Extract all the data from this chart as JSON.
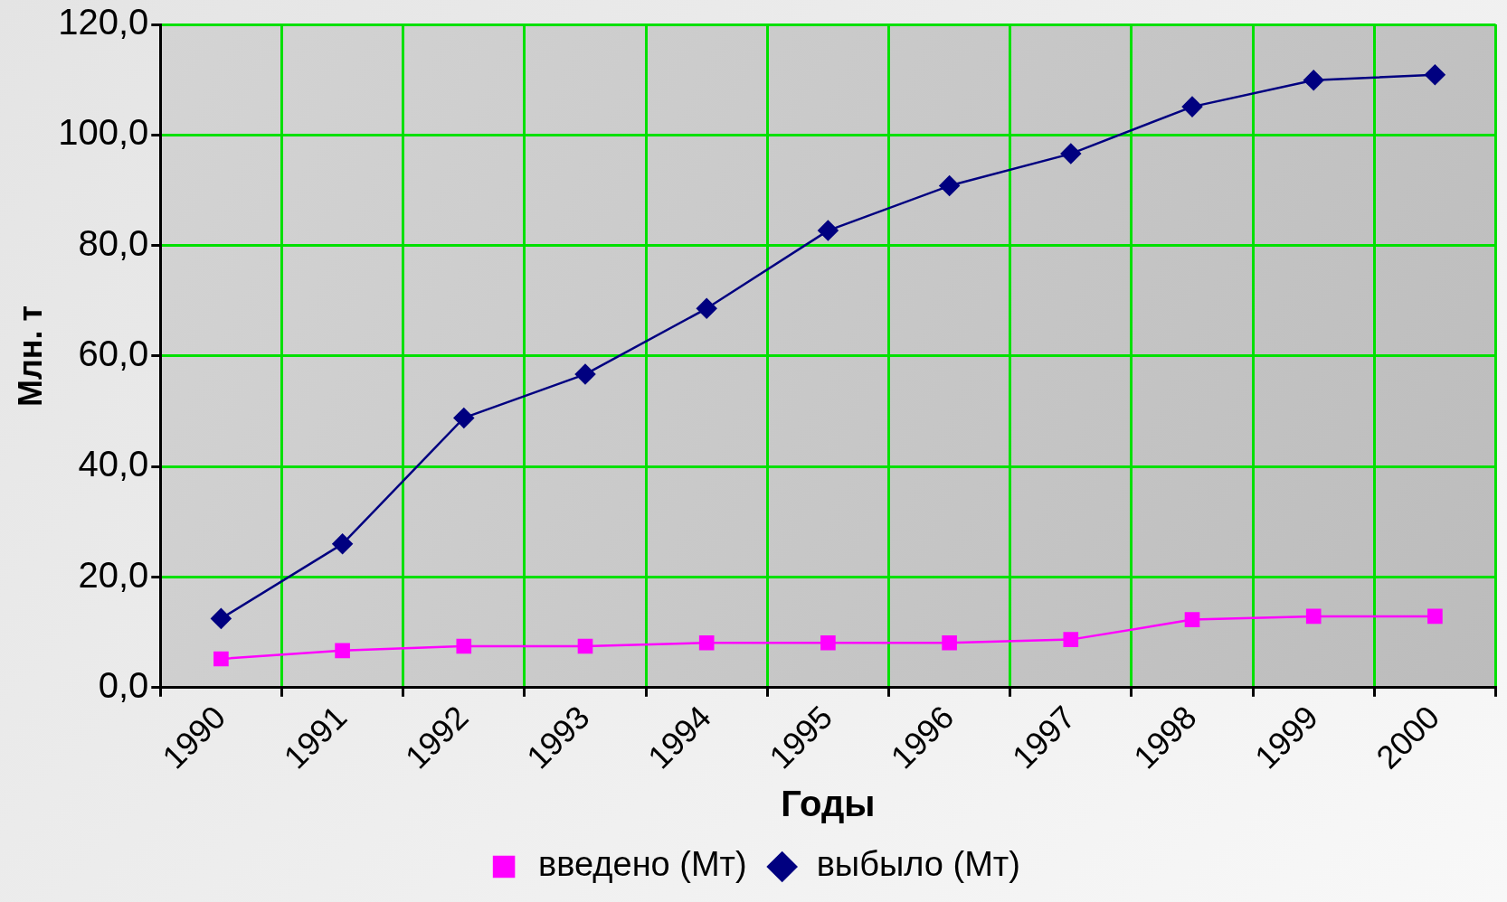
{
  "chart_data": {
    "type": "line",
    "xlabel": "Годы",
    "ylabel": "Млн. т",
    "categories": [
      "1990",
      "1991",
      "1992",
      "1993",
      "1994",
      "1995",
      "1996",
      "1997",
      "1998",
      "1999",
      "2000"
    ],
    "series": [
      {
        "name": "введено (Мт)",
        "color": "#ff00ff",
        "marker": "square",
        "values": [
          5.2,
          6.7,
          7.5,
          7.5,
          8.1,
          8.1,
          8.1,
          8.7,
          12.3,
          12.9,
          12.9
        ]
      },
      {
        "name": "выбыло (Мт)",
        "color": "#000080",
        "marker": "diamond",
        "values": [
          12.5,
          26.0,
          48.8,
          56.7,
          68.6,
          82.7,
          90.8,
          96.6,
          105.1,
          109.9,
          110.9
        ]
      }
    ],
    "ylim": [
      0,
      120
    ],
    "yticks": [
      {
        "value": 0,
        "label": "0,0"
      },
      {
        "value": 20,
        "label": "20,0"
      },
      {
        "value": 40,
        "label": "40,0"
      },
      {
        "value": 60,
        "label": "60,0"
      },
      {
        "value": 80,
        "label": "80,0"
      },
      {
        "value": 100,
        "label": "100,0"
      },
      {
        "value": 120,
        "label": "120,0"
      }
    ],
    "grid": true,
    "legend": "bottom",
    "line_style": "solid"
  }
}
